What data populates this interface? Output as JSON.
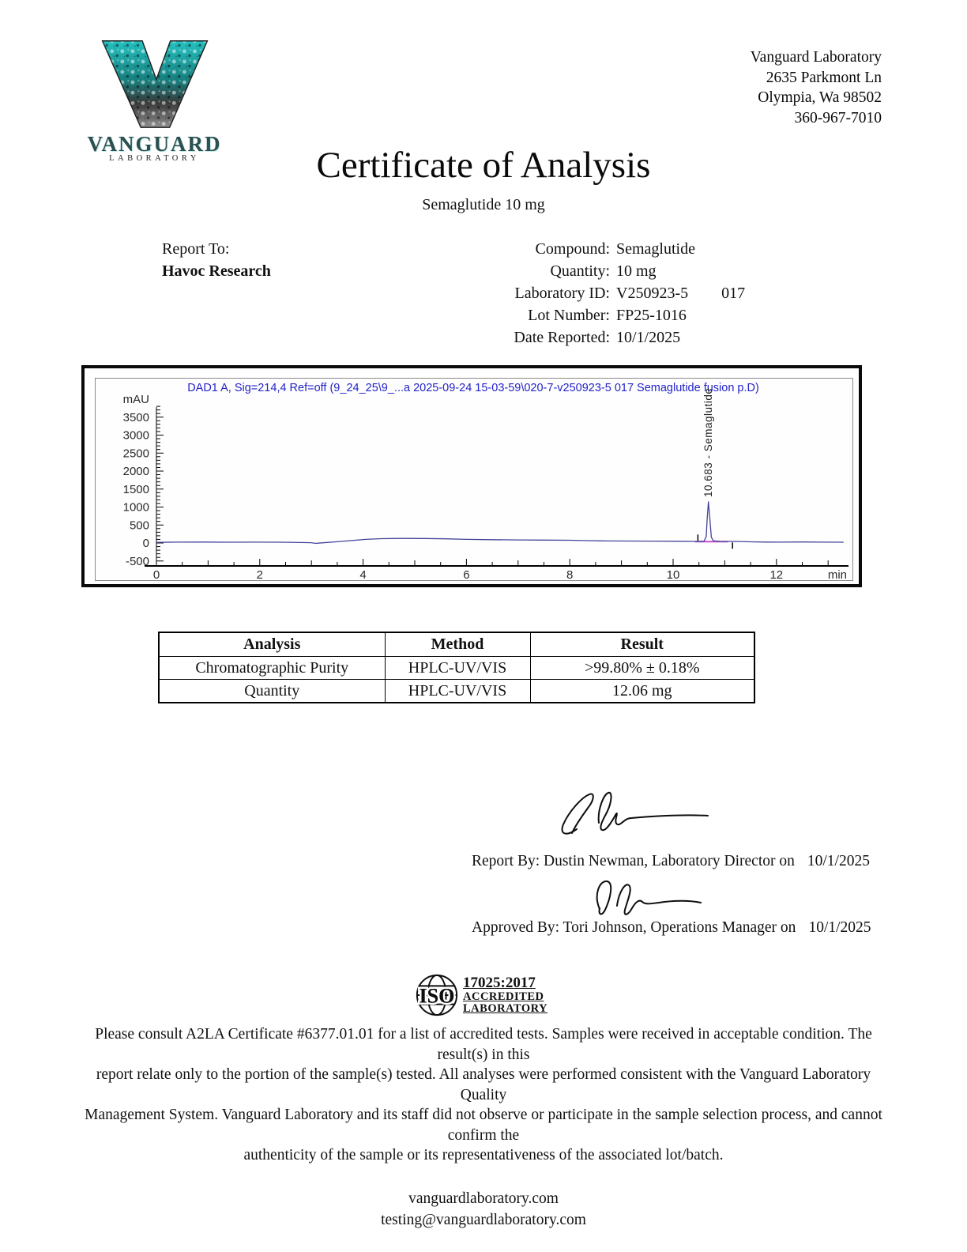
{
  "header": {
    "logo": {
      "brand": "VANGUARD",
      "brand_sub": "LABORATORY"
    },
    "address": {
      "line1": "Vanguard Laboratory",
      "line2": "2635 Parkmont Ln",
      "line3": "Olympia, Wa 98502",
      "line4": "360-967-7010"
    }
  },
  "title": "Certificate of Analysis",
  "subtitle": "Semaglutide 10 mg",
  "report_info": {
    "report_to_label": "Report To:",
    "report_to_name": "Havoc Research",
    "fields": [
      {
        "label": "Compound:",
        "value": "Semaglutide"
      },
      {
        "label": "Quantity:",
        "value": "10 mg"
      },
      {
        "label": "Laboratory ID:",
        "value": "V250923-5",
        "extra": "017"
      },
      {
        "label": "Lot Number:",
        "value": "FP25-1016"
      },
      {
        "label": "Date Reported:",
        "value": "10/1/2025"
      }
    ]
  },
  "chart_data": {
    "type": "line",
    "title": "DAD1 A, Sig=214,4 Ref=off (9_24_25\\9_...a 2025-09-24 15-03-59\\020-7-v250923-5 017 Semaglutide fusion p.D)",
    "title_color": "#2323cb",
    "ylabel": "mAU",
    "x_unit": "min",
    "xlim": [
      0,
      13.35
    ],
    "ylim": [
      -650,
      3900
    ],
    "x_ticks": [
      0,
      2,
      4,
      6,
      8,
      10,
      12
    ],
    "x_minor_step": 0.5,
    "y_ticks": [
      -500,
      0,
      500,
      1000,
      1500,
      2000,
      2500,
      3000,
      3500
    ],
    "y_minor_step": 100,
    "grid": false,
    "peak": {
      "retention_time_min": 10.683,
      "name": "Semaglutide",
      "annotation": "10.683 -  Semaglutide",
      "apex_mAU": 1145
    },
    "integration": {
      "x_start": 10.42,
      "x_end": 11.06,
      "y": 38,
      "color": "#c94fc9",
      "tick_start": 10.48,
      "tick_end": 11.15
    },
    "series": [
      {
        "name": "DAD1 A signal",
        "color": "#43439a",
        "points": [
          [
            0,
            18
          ],
          [
            0.4,
            24
          ],
          [
            0.9,
            26
          ],
          [
            1.4,
            23
          ],
          [
            1.9,
            24
          ],
          [
            2.4,
            21
          ],
          [
            2.8,
            14
          ],
          [
            3.0,
            8
          ],
          [
            3.08,
            -10
          ],
          [
            3.2,
            4
          ],
          [
            3.45,
            30
          ],
          [
            3.75,
            65
          ],
          [
            4.05,
            100
          ],
          [
            4.35,
            120
          ],
          [
            4.75,
            127
          ],
          [
            5.2,
            126
          ],
          [
            5.6,
            116
          ],
          [
            6.0,
            102
          ],
          [
            6.5,
            92
          ],
          [
            7.0,
            86
          ],
          [
            7.5,
            81
          ],
          [
            8.0,
            76
          ],
          [
            8.35,
            66
          ],
          [
            8.7,
            58
          ],
          [
            9.1,
            55
          ],
          [
            9.6,
            52
          ],
          [
            10.1,
            48
          ],
          [
            10.4,
            43
          ],
          [
            10.52,
            45
          ],
          [
            10.6,
            52
          ],
          [
            10.64,
            180
          ],
          [
            10.66,
            700
          ],
          [
            10.683,
            1145
          ],
          [
            10.71,
            700
          ],
          [
            10.74,
            160
          ],
          [
            10.78,
            60
          ],
          [
            10.9,
            46
          ],
          [
            11.1,
            44
          ],
          [
            11.3,
            41
          ],
          [
            11.5,
            32
          ],
          [
            11.8,
            26
          ],
          [
            12.1,
            24
          ],
          [
            12.5,
            28
          ],
          [
            12.9,
            24
          ],
          [
            13.3,
            23
          ]
        ]
      }
    ]
  },
  "results_table": {
    "headers": [
      "Analysis",
      "Method",
      "Result"
    ],
    "rows": [
      [
        "Chromatographic Purity",
        "HPLC-UV/VIS",
        ">99.80% ± 0.18%"
      ],
      [
        "Quantity",
        "HPLC-UV/VIS",
        "12.06 mg"
      ]
    ]
  },
  "signatures": {
    "report_by_line": "Report By: Dustin Newman, Laboratory Director on",
    "report_by_date": "10/1/2025",
    "approved_by_line": "Approved By: Tori Johnson, Operations Manager on",
    "approved_by_date": "10/1/2025"
  },
  "iso": {
    "globe_text": "ISO",
    "line1": "17025:2017",
    "line2": "ACCREDITED",
    "line3": "LABORATORY"
  },
  "disclaimer_lines": [
    "Please consult A2LA Certificate #6377.01.01 for a list of accredited tests. Samples were received in acceptable condition. The result(s) in this",
    "report relate only to the portion of the sample(s) tested. All analyses were performed consistent with the Vanguard Laboratory Quality",
    "Management System. Vanguard Laboratory and its staff did not observe or participate in the sample selection process, and cannot confirm the",
    "authenticity of the sample or its representativeness of the associated lot/batch."
  ],
  "footer": {
    "website": "vanguardlaboratory.com",
    "email": "testing@vanguardlaboratory.com"
  }
}
